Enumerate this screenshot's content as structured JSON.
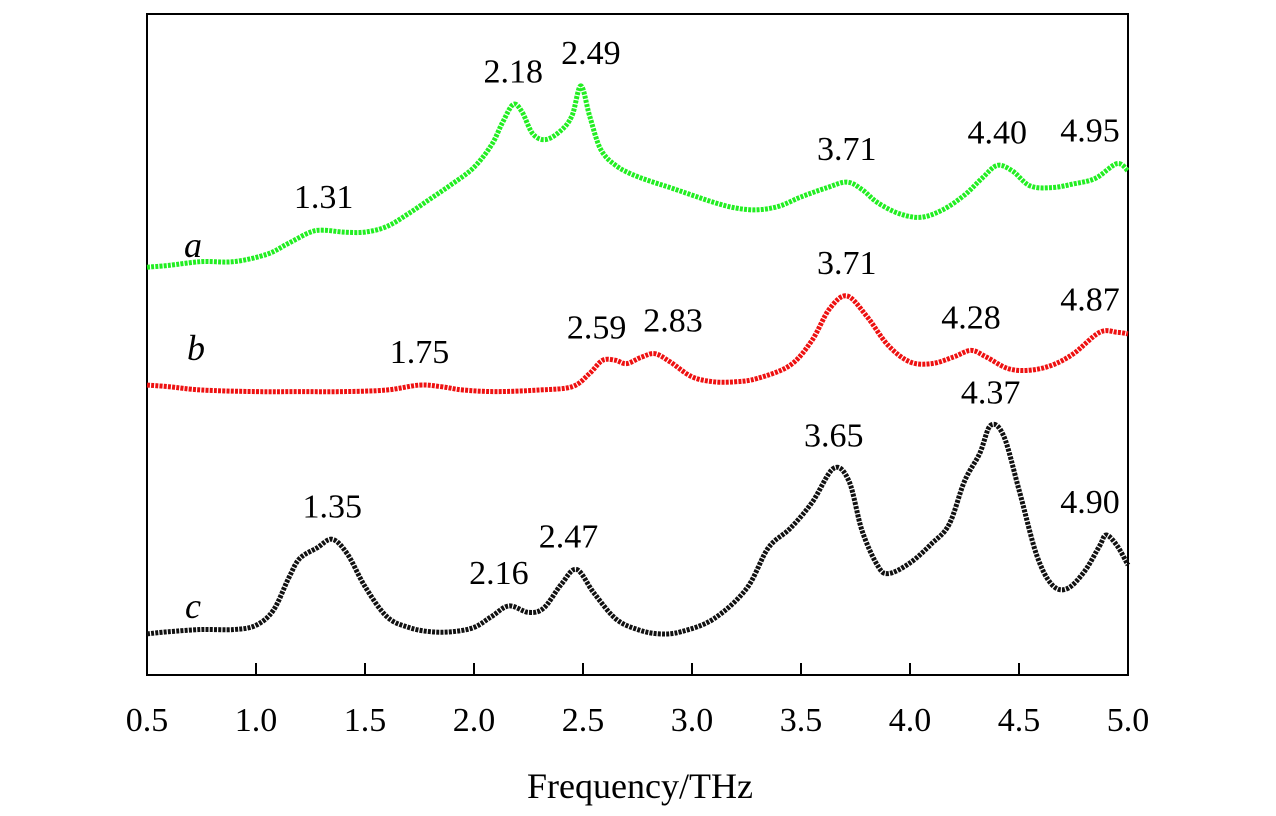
{
  "chart_data": {
    "type": "line",
    "xlabel": "Frequency/THz",
    "ylabel": "",
    "xlim": [
      0.5,
      5.0
    ],
    "x_ticks": [
      "0.5",
      "1.0",
      "1.5",
      "2.0",
      "2.5",
      "3.0",
      "3.5",
      "4.0",
      "4.5",
      "5.0"
    ],
    "y_ticks": false,
    "grid": false,
    "legend": "none",
    "series": [
      {
        "name": "a",
        "color": "#22ee22",
        "points": [
          [
            0.5,
            0.08
          ],
          [
            0.6,
            0.09
          ],
          [
            0.75,
            0.11
          ],
          [
            0.9,
            0.11
          ],
          [
            1.05,
            0.15
          ],
          [
            1.15,
            0.21
          ],
          [
            1.25,
            0.27
          ],
          [
            1.31,
            0.28
          ],
          [
            1.4,
            0.27
          ],
          [
            1.5,
            0.27
          ],
          [
            1.6,
            0.3
          ],
          [
            1.7,
            0.37
          ],
          [
            1.8,
            0.45
          ],
          [
            1.9,
            0.53
          ],
          [
            2.0,
            0.62
          ],
          [
            2.08,
            0.74
          ],
          [
            2.13,
            0.86
          ],
          [
            2.18,
            0.96
          ],
          [
            2.22,
            0.92
          ],
          [
            2.27,
            0.8
          ],
          [
            2.33,
            0.77
          ],
          [
            2.4,
            0.82
          ],
          [
            2.45,
            0.9
          ],
          [
            2.49,
            1.06
          ],
          [
            2.53,
            0.9
          ],
          [
            2.58,
            0.72
          ],
          [
            2.65,
            0.63
          ],
          [
            2.75,
            0.57
          ],
          [
            2.9,
            0.51
          ],
          [
            3.0,
            0.47
          ],
          [
            3.1,
            0.43
          ],
          [
            3.2,
            0.4
          ],
          [
            3.3,
            0.39
          ],
          [
            3.4,
            0.41
          ],
          [
            3.5,
            0.46
          ],
          [
            3.62,
            0.51
          ],
          [
            3.71,
            0.54
          ],
          [
            3.78,
            0.5
          ],
          [
            3.85,
            0.43
          ],
          [
            3.95,
            0.37
          ],
          [
            4.05,
            0.35
          ],
          [
            4.15,
            0.39
          ],
          [
            4.25,
            0.47
          ],
          [
            4.33,
            0.56
          ],
          [
            4.4,
            0.63
          ],
          [
            4.47,
            0.6
          ],
          [
            4.55,
            0.52
          ],
          [
            4.65,
            0.51
          ],
          [
            4.75,
            0.53
          ],
          [
            4.85,
            0.56
          ],
          [
            4.95,
            0.64
          ],
          [
            5.0,
            0.6
          ]
        ]
      },
      {
        "name": "b",
        "color": "#ee1111",
        "points": [
          [
            0.5,
            0.03
          ],
          [
            0.6,
            0.02
          ],
          [
            0.75,
            0.0
          ],
          [
            1.0,
            -0.01
          ],
          [
            1.2,
            -0.01
          ],
          [
            1.4,
            -0.01
          ],
          [
            1.6,
            0.0
          ],
          [
            1.75,
            0.03
          ],
          [
            1.85,
            0.02
          ],
          [
            1.95,
            0.0
          ],
          [
            2.1,
            -0.01
          ],
          [
            2.3,
            0.0
          ],
          [
            2.45,
            0.02
          ],
          [
            2.53,
            0.1
          ],
          [
            2.59,
            0.18
          ],
          [
            2.65,
            0.18
          ],
          [
            2.7,
            0.16
          ],
          [
            2.77,
            0.2
          ],
          [
            2.83,
            0.22
          ],
          [
            2.9,
            0.17
          ],
          [
            3.0,
            0.08
          ],
          [
            3.1,
            0.05
          ],
          [
            3.2,
            0.05
          ],
          [
            3.3,
            0.07
          ],
          [
            3.45,
            0.15
          ],
          [
            3.55,
            0.3
          ],
          [
            3.63,
            0.49
          ],
          [
            3.71,
            0.57
          ],
          [
            3.8,
            0.45
          ],
          [
            3.9,
            0.27
          ],
          [
            4.0,
            0.17
          ],
          [
            4.1,
            0.16
          ],
          [
            4.2,
            0.2
          ],
          [
            4.28,
            0.24
          ],
          [
            4.35,
            0.2
          ],
          [
            4.45,
            0.13
          ],
          [
            4.55,
            0.12
          ],
          [
            4.65,
            0.15
          ],
          [
            4.75,
            0.22
          ],
          [
            4.87,
            0.35
          ],
          [
            4.95,
            0.35
          ],
          [
            5.0,
            0.34
          ]
        ]
      },
      {
        "name": "c",
        "color": "#111111",
        "points": [
          [
            0.5,
            0.01
          ],
          [
            0.6,
            0.02
          ],
          [
            0.75,
            0.03
          ],
          [
            0.9,
            0.03
          ],
          [
            1.0,
            0.05
          ],
          [
            1.08,
            0.12
          ],
          [
            1.15,
            0.27
          ],
          [
            1.2,
            0.36
          ],
          [
            1.28,
            0.41
          ],
          [
            1.35,
            0.45
          ],
          [
            1.42,
            0.38
          ],
          [
            1.5,
            0.23
          ],
          [
            1.6,
            0.09
          ],
          [
            1.7,
            0.04
          ],
          [
            1.8,
            0.02
          ],
          [
            1.9,
            0.02
          ],
          [
            2.0,
            0.04
          ],
          [
            2.08,
            0.09
          ],
          [
            2.16,
            0.14
          ],
          [
            2.25,
            0.11
          ],
          [
            2.32,
            0.13
          ],
          [
            2.4,
            0.24
          ],
          [
            2.47,
            0.31
          ],
          [
            2.55,
            0.2
          ],
          [
            2.65,
            0.08
          ],
          [
            2.75,
            0.03
          ],
          [
            2.85,
            0.01
          ],
          [
            2.95,
            0.02
          ],
          [
            3.1,
            0.08
          ],
          [
            3.25,
            0.22
          ],
          [
            3.35,
            0.41
          ],
          [
            3.45,
            0.5
          ],
          [
            3.55,
            0.62
          ],
          [
            3.65,
            0.78
          ],
          [
            3.72,
            0.72
          ],
          [
            3.78,
            0.49
          ],
          [
            3.85,
            0.33
          ],
          [
            3.9,
            0.29
          ],
          [
            4.0,
            0.34
          ],
          [
            4.1,
            0.43
          ],
          [
            4.18,
            0.52
          ],
          [
            4.25,
            0.72
          ],
          [
            4.32,
            0.85
          ],
          [
            4.37,
            0.98
          ],
          [
            4.43,
            0.93
          ],
          [
            4.5,
            0.68
          ],
          [
            4.58,
            0.38
          ],
          [
            4.65,
            0.24
          ],
          [
            4.72,
            0.22
          ],
          [
            4.8,
            0.3
          ],
          [
            4.87,
            0.42
          ],
          [
            4.9,
            0.47
          ],
          [
            4.95,
            0.42
          ],
          [
            5.0,
            0.33
          ]
        ]
      }
    ],
    "series_labels": [
      "a",
      "b",
      "c"
    ],
    "annotations": [
      {
        "series": "a",
        "x": 1.31,
        "text": "1.31"
      },
      {
        "series": "a",
        "x": 2.18,
        "text": "2.18"
      },
      {
        "series": "a",
        "x": 2.49,
        "text": "2.49"
      },
      {
        "series": "a",
        "x": 3.71,
        "text": "3.71"
      },
      {
        "series": "a",
        "x": 4.4,
        "text": "4.40"
      },
      {
        "series": "a",
        "x": 4.95,
        "text": "4.95"
      },
      {
        "series": "b",
        "x": 1.75,
        "text": "1.75"
      },
      {
        "series": "b",
        "x": 2.59,
        "text": "2.59"
      },
      {
        "series": "b",
        "x": 2.83,
        "text": "2.83"
      },
      {
        "series": "b",
        "x": 3.71,
        "text": "3.71"
      },
      {
        "series": "b",
        "x": 4.28,
        "text": "4.28"
      },
      {
        "series": "b",
        "x": 4.87,
        "text": "4.87"
      },
      {
        "series": "c",
        "x": 1.35,
        "text": "1.35"
      },
      {
        "series": "c",
        "x": 2.16,
        "text": "2.16"
      },
      {
        "series": "c",
        "x": 2.47,
        "text": "2.47"
      },
      {
        "series": "c",
        "x": 3.65,
        "text": "3.65"
      },
      {
        "series": "c",
        "x": 4.37,
        "text": "4.37"
      },
      {
        "series": "c",
        "x": 4.9,
        "text": "4.90"
      }
    ]
  }
}
